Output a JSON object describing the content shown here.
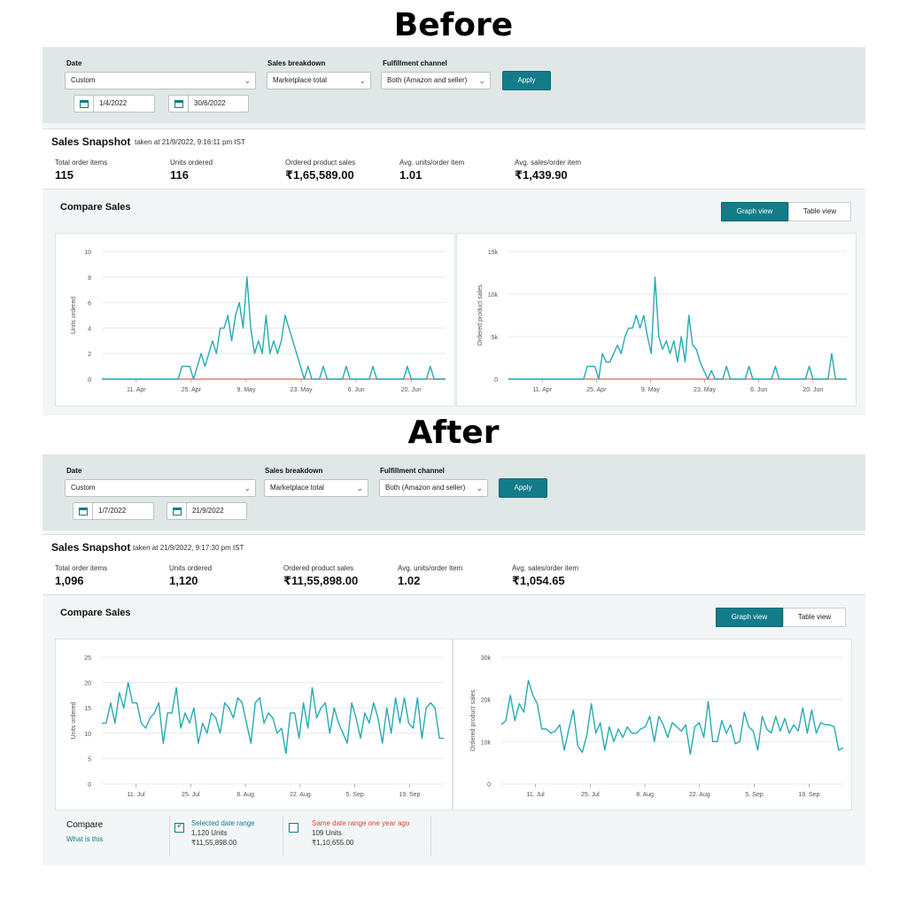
{
  "headings": {
    "before": "Before",
    "after": "After"
  },
  "colors": {
    "accent": "#127c88",
    "line": "#27aab3",
    "baseline": "#e06a5a",
    "compare_red": "#d9443a"
  },
  "before": {
    "filters": {
      "date_label": "Date",
      "date_value": "Custom",
      "breakdown_label": "Sales breakdown",
      "breakdown_value": "Marketplace total",
      "channel_label": "Fulfillment channel",
      "channel_value": "Both (Amazon and seller)",
      "start_date": "1/4/2022",
      "end_date": "30/6/2022",
      "apply_label": "Apply"
    },
    "snapshot": {
      "title": "Sales Snapshot",
      "taken": "taken at 21/9/2022, 9:16:11 pm IST"
    },
    "metrics": [
      {
        "label": "Total order items",
        "value": "115"
      },
      {
        "label": "Units ordered",
        "value": "116"
      },
      {
        "label": "Ordered product sales",
        "value": "₹1,65,589.00"
      },
      {
        "label": "Avg. units/order item",
        "value": "1.01"
      },
      {
        "label": "Avg. sales/order item",
        "value": "₹1,439.90"
      }
    ],
    "compare": {
      "title": "Compare Sales",
      "graph_view": "Graph view",
      "table_view": "Table view"
    }
  },
  "after": {
    "filters": {
      "date_label": "Date",
      "date_value": "Custom",
      "breakdown_label": "Sales breakdown",
      "breakdown_value": "Marketplace total",
      "channel_label": "Fulfillment channel",
      "channel_value": "Both (Amazon and seller)",
      "start_date": "1/7/2022",
      "end_date": "21/9/2022",
      "apply_label": "Apply"
    },
    "snapshot": {
      "title": "Sales Snapshot",
      "taken": "taken at 21/9/2022, 9:17:30 pm IST"
    },
    "metrics": [
      {
        "label": "Total order items",
        "value": "1,096"
      },
      {
        "label": "Units ordered",
        "value": "1,120"
      },
      {
        "label": "Ordered product sales",
        "value": "₹11,55,898.00"
      },
      {
        "label": "Avg. units/order item",
        "value": "1.02"
      },
      {
        "label": "Avg. sales/order item",
        "value": "₹1,054.65"
      }
    ],
    "compare": {
      "title": "Compare Sales",
      "graph_view": "Graph view",
      "table_view": "Table view"
    },
    "compare_footer": {
      "title": "Compare",
      "link": "What is this",
      "selected": {
        "label": "Selected date range",
        "units": "1,120 Units",
        "sales": "₹11,55,898.00"
      },
      "prior": {
        "label": "Same date range one year ago",
        "units": "109 Units",
        "sales": "₹1,10,655.00"
      }
    }
  },
  "chart_data": [
    {
      "type": "line",
      "ylabel": "Units ordered",
      "ylim": [
        0,
        10
      ],
      "yticks": [
        "0",
        "2",
        "4",
        "6",
        "8",
        "10"
      ],
      "xticks": [
        "11. Apr",
        "25. Apr",
        "9. May",
        "23. May",
        "6. Jun",
        "20. Jun"
      ],
      "series": [
        {
          "values": [
            0,
            0,
            0,
            0,
            0,
            0,
            0,
            0,
            0,
            0,
            0,
            0,
            0,
            0,
            0,
            0,
            0,
            0,
            0,
            0,
            0,
            1,
            1,
            1,
            0,
            1,
            2,
            1,
            2,
            3,
            2,
            4,
            4,
            5,
            3,
            5,
            6,
            4,
            8,
            4,
            2,
            3,
            2,
            5,
            2,
            3,
            2,
            3,
            5,
            4,
            3,
            2,
            1,
            0,
            1,
            0,
            0,
            0,
            1,
            0,
            0,
            0,
            0,
            0,
            1,
            0,
            0,
            0,
            0,
            0,
            0,
            1,
            0,
            0,
            0,
            0,
            0,
            0,
            0,
            0,
            1,
            0,
            0,
            0,
            0,
            0,
            1,
            0,
            0,
            0,
            0
          ]
        },
        {
          "values": [
            0,
            0,
            0,
            0,
            0,
            0,
            0,
            0,
            0,
            0,
            0,
            0,
            0,
            0,
            0,
            0,
            0,
            0,
            0,
            0,
            0,
            0,
            0,
            0,
            0,
            0,
            0,
            0,
            0,
            0,
            0,
            0,
            0,
            0,
            0,
            0,
            0,
            0,
            0,
            0,
            0,
            0,
            0,
            0,
            0,
            0,
            0,
            0,
            0,
            0,
            0,
            0,
            0,
            0,
            0,
            0,
            0,
            0,
            0,
            0,
            0,
            0,
            0,
            0,
            0,
            0,
            0,
            0,
            0,
            0,
            0,
            0,
            0,
            0,
            0,
            0,
            0,
            0,
            0,
            0,
            0,
            0,
            0,
            0,
            0,
            0,
            0,
            0,
            0,
            0,
            0
          ]
        }
      ]
    },
    {
      "type": "line",
      "ylabel": "Ordered product sales",
      "ylim": [
        0,
        15000
      ],
      "yticks": [
        "0",
        "5k",
        "10k",
        "15k"
      ],
      "xticks": [
        "11. Apr",
        "25. Apr",
        "9. May",
        "23. May",
        "6. Jun",
        "20. Jun"
      ],
      "series": [
        {
          "values": [
            0,
            0,
            0,
            0,
            0,
            0,
            0,
            0,
            0,
            0,
            0,
            0,
            0,
            0,
            0,
            0,
            0,
            0,
            0,
            0,
            0,
            1500,
            1500,
            1500,
            0,
            3000,
            2000,
            2000,
            3000,
            4000,
            3000,
            5000,
            6000,
            6000,
            7500,
            6000,
            7500,
            5000,
            3000,
            12000,
            5000,
            3500,
            4500,
            3000,
            4500,
            2000,
            5000,
            2000,
            7500,
            4000,
            3500,
            2000,
            1000,
            0,
            1000,
            0,
            0,
            0,
            1500,
            0,
            0,
            0,
            0,
            0,
            1500,
            0,
            0,
            0,
            0,
            0,
            0,
            1500,
            0,
            0,
            0,
            0,
            0,
            0,
            0,
            0,
            1500,
            0,
            0,
            0,
            0,
            0,
            3000,
            0,
            0,
            0,
            0
          ]
        },
        {
          "values": [
            0,
            0,
            0,
            0,
            0,
            0,
            0,
            0,
            0,
            0,
            0,
            0,
            0,
            0,
            0,
            0,
            0,
            0,
            0,
            0,
            0,
            0,
            0,
            0,
            0,
            0,
            0,
            0,
            0,
            0,
            0,
            0,
            0,
            0,
            0,
            0,
            0,
            0,
            0,
            0,
            0,
            0,
            0,
            0,
            0,
            0,
            0,
            0,
            0,
            0,
            0,
            0,
            0,
            0,
            0,
            0,
            0,
            0,
            0,
            0,
            0,
            0,
            0,
            0,
            0,
            0,
            0,
            0,
            0,
            0,
            0,
            0,
            0,
            0,
            0,
            0,
            0,
            0,
            0,
            0,
            0,
            0,
            0,
            0,
            0,
            0,
            0,
            0,
            0,
            0,
            0
          ]
        }
      ]
    },
    {
      "type": "line",
      "ylabel": "Units ordered",
      "ylim": [
        0,
        25
      ],
      "yticks": [
        "0",
        "5",
        "10",
        "15",
        "20",
        "25"
      ],
      "xticks": [
        "11. Jul",
        "25. Jul",
        "8. Aug",
        "22. Aug",
        "5. Sep",
        "19. Sep"
      ],
      "series": [
        {
          "values": [
            12,
            12,
            16,
            12,
            18,
            15,
            20,
            16,
            16,
            12,
            11,
            13,
            14,
            16,
            8,
            14,
            14,
            19,
            11,
            14,
            12,
            15,
            8,
            12,
            10,
            14,
            13,
            10,
            16,
            15,
            13,
            17,
            16,
            12,
            8,
            16,
            17,
            12,
            14,
            13,
            10,
            11,
            6,
            14,
            14,
            9,
            16,
            11,
            19,
            13,
            15,
            16,
            10,
            15,
            12,
            10,
            8,
            16,
            13,
            9,
            14,
            12,
            16,
            13,
            8,
            15,
            10,
            17,
            12,
            17,
            12,
            11,
            17,
            9,
            15,
            16,
            15,
            9,
            9
          ]
        }
      ]
    },
    {
      "type": "line",
      "ylabel": "Ordered product sales",
      "ylim": [
        0,
        30000
      ],
      "yticks": [
        "0",
        "10k",
        "20k",
        "30k"
      ],
      "xticks": [
        "11. Jul",
        "25. Jul",
        "8. Aug",
        "22. Aug",
        "5. Sep",
        "19. Sep"
      ],
      "series": [
        {
          "values": [
            14000,
            15000,
            21000,
            15000,
            19000,
            17000,
            24500,
            21000,
            19000,
            13000,
            13000,
            12000,
            12500,
            14000,
            8000,
            13000,
            17500,
            9000,
            7500,
            11500,
            19000,
            12000,
            14500,
            8000,
            13500,
            10000,
            13000,
            11000,
            13500,
            12000,
            12000,
            13000,
            13500,
            16000,
            10000,
            16000,
            14000,
            11000,
            14500,
            13500,
            12500,
            14000,
            7000,
            13500,
            14500,
            11000,
            19500,
            10000,
            10000,
            15000,
            12000,
            14000,
            9500,
            10000,
            17000,
            13500,
            12500,
            8000,
            16000,
            13000,
            12000,
            16000,
            12500,
            15500,
            12000,
            14000,
            12500,
            18000,
            12000,
            17500,
            12000,
            14500,
            14000,
            14000,
            13500,
            8000,
            8500
          ]
        }
      ]
    }
  ]
}
